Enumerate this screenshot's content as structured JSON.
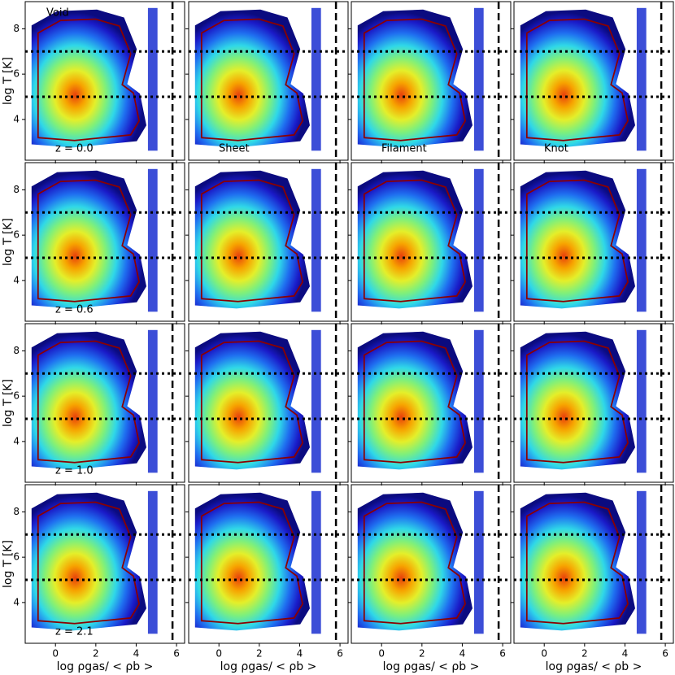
{
  "chart_data": [
    {
      "type": "density",
      "annotations": [
        {
          "text": "Void",
          "loc": "upper left"
        },
        {
          "text": "z = 0.0",
          "loc": "lower left"
        }
      ],
      "ylabel": "log T [K]",
      "xlim": [
        -1.5,
        6.4
      ],
      "ylim": [
        2.2,
        9.2
      ],
      "xticks": [
        0,
        2,
        4,
        6
      ],
      "yticks": [
        4,
        6,
        8
      ],
      "hlines": [
        5,
        7
      ],
      "vline": 5.8
    },
    {
      "type": "density",
      "annotations": [
        {
          "text": "Sheet",
          "loc": "lower left"
        }
      ],
      "xlim": [
        -1.5,
        6.4
      ],
      "ylim": [
        2.2,
        9.2
      ],
      "xticks": [
        0,
        2,
        4,
        6
      ],
      "yticks": [
        4,
        6,
        8
      ],
      "hlines": [
        5,
        7
      ],
      "vline": 5.8
    },
    {
      "type": "density",
      "annotations": [
        {
          "text": "Filament",
          "loc": "lower left"
        }
      ],
      "xlim": [
        -1.5,
        6.4
      ],
      "ylim": [
        2.2,
        9.2
      ],
      "xticks": [
        0,
        2,
        4,
        6
      ],
      "yticks": [
        4,
        6,
        8
      ],
      "hlines": [
        5,
        7
      ],
      "vline": 5.8
    },
    {
      "type": "density",
      "annotations": [
        {
          "text": "Knot",
          "loc": "lower left"
        }
      ],
      "xlim": [
        -1.5,
        6.4
      ],
      "ylim": [
        2.2,
        9.2
      ],
      "xticks": [
        0,
        2,
        4,
        6
      ],
      "yticks": [
        4,
        6,
        8
      ],
      "hlines": [
        5,
        7
      ],
      "vline": 5.8
    },
    {
      "type": "density",
      "annotations": [
        {
          "text": "z = 0.6",
          "loc": "lower left"
        }
      ],
      "ylabel": "log T [K]",
      "xlim": [
        -1.5,
        6.4
      ],
      "ylim": [
        2.2,
        9.2
      ],
      "xticks": [
        0,
        2,
        4,
        6
      ],
      "yticks": [
        4,
        6,
        8
      ],
      "hlines": [
        5,
        7
      ],
      "vline": 5.8
    },
    {
      "type": "density",
      "xlim": [
        -1.5,
        6.4
      ],
      "ylim": [
        2.2,
        9.2
      ],
      "xticks": [
        0,
        2,
        4,
        6
      ],
      "yticks": [
        4,
        6,
        8
      ],
      "hlines": [
        5,
        7
      ],
      "vline": 5.8
    },
    {
      "type": "density",
      "xlim": [
        -1.5,
        6.4
      ],
      "ylim": [
        2.2,
        9.2
      ],
      "xticks": [
        0,
        2,
        4,
        6
      ],
      "yticks": [
        4,
        6,
        8
      ],
      "hlines": [
        5,
        7
      ],
      "vline": 5.8
    },
    {
      "type": "density",
      "xlim": [
        -1.5,
        6.4
      ],
      "ylim": [
        2.2,
        9.2
      ],
      "xticks": [
        0,
        2,
        4,
        6
      ],
      "yticks": [
        4,
        6,
        8
      ],
      "hlines": [
        5,
        7
      ],
      "vline": 5.8
    },
    {
      "type": "density",
      "annotations": [
        {
          "text": "z = 1.0",
          "loc": "lower left"
        }
      ],
      "ylabel": "log T [K]",
      "xlim": [
        -1.5,
        6.4
      ],
      "ylim": [
        2.2,
        9.2
      ],
      "xticks": [
        0,
        2,
        4,
        6
      ],
      "yticks": [
        4,
        6,
        8
      ],
      "hlines": [
        5,
        7
      ],
      "vline": 5.8
    },
    {
      "type": "density",
      "xlim": [
        -1.5,
        6.4
      ],
      "ylim": [
        2.2,
        9.2
      ],
      "xticks": [
        0,
        2,
        4,
        6
      ],
      "yticks": [
        4,
        6,
        8
      ],
      "hlines": [
        5,
        7
      ],
      "vline": 5.8
    },
    {
      "type": "density",
      "xlim": [
        -1.5,
        6.4
      ],
      "ylim": [
        2.2,
        9.2
      ],
      "xticks": [
        0,
        2,
        4,
        6
      ],
      "yticks": [
        4,
        6,
        8
      ],
      "hlines": [
        5,
        7
      ],
      "vline": 5.8
    },
    {
      "type": "density",
      "xlim": [
        -1.5,
        6.4
      ],
      "ylim": [
        2.2,
        9.2
      ],
      "xticks": [
        0,
        2,
        4,
        6
      ],
      "yticks": [
        4,
        6,
        8
      ],
      "hlines": [
        5,
        7
      ],
      "vline": 5.8
    },
    {
      "type": "density",
      "annotations": [
        {
          "text": "z = 2.1",
          "loc": "lower left"
        }
      ],
      "ylabel": "log T [K]",
      "xlabel": "log ρgas/ < ρb >",
      "xlim": [
        -1.5,
        6.4
      ],
      "ylim": [
        2.2,
        9.2
      ],
      "xticks": [
        0,
        2,
        4,
        6
      ],
      "yticks": [
        4,
        6,
        8
      ],
      "hlines": [
        5,
        7
      ],
      "vline": 5.8
    },
    {
      "type": "density",
      "xlabel": "log ρgas/ < ρb >",
      "xlim": [
        -1.5,
        6.4
      ],
      "ylim": [
        2.2,
        9.2
      ],
      "xticks": [
        0,
        2,
        4,
        6
      ],
      "yticks": [
        4,
        6,
        8
      ],
      "hlines": [
        5,
        7
      ],
      "vline": 5.8
    },
    {
      "type": "density",
      "xlabel": "log ρgas/ < ρb >",
      "xlim": [
        -1.5,
        6.4
      ],
      "ylim": [
        2.2,
        9.2
      ],
      "xticks": [
        0,
        2,
        4,
        6
      ],
      "yticks": [
        4,
        6,
        8
      ],
      "hlines": [
        5,
        7
      ],
      "vline": 5.8
    },
    {
      "type": "density",
      "xlabel": "log ρgas/ < ρb >",
      "xlim": [
        -1.5,
        6.4
      ],
      "ylim": [
        2.2,
        9.2
      ],
      "xticks": [
        0,
        2,
        4,
        6
      ],
      "yticks": [
        4,
        6,
        8
      ],
      "hlines": [
        5,
        7
      ],
      "vline": 5.8
    }
  ]
}
